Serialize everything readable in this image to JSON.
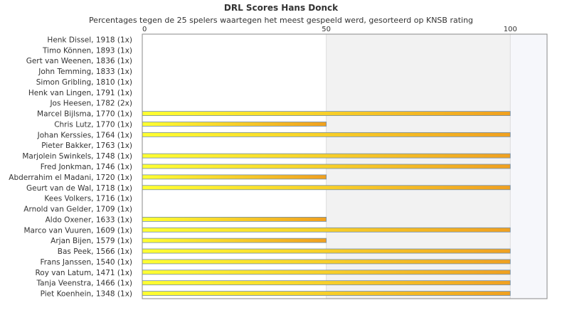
{
  "chart_data": {
    "type": "bar",
    "orientation": "horizontal",
    "title": "DRL Scores Hans Donck",
    "subtitle": "Percentages tegen de 25 spelers waartegen het meest gespeeld werd, gesorteerd op KNSB rating",
    "xlim": [
      0,
      110
    ],
    "xticks": [
      0,
      50,
      100
    ],
    "grid": true,
    "legend": "none",
    "colors": {
      "bar_start": "#ffff33",
      "bar_end": "#f0a020",
      "bar_border": "#6f8fb0",
      "band": "#f2f2f2",
      "band_last": "#f6f7fb",
      "gridline": "#dddddd",
      "axis": "#888888",
      "text": "#333333"
    },
    "categories": [
      "Henk Dissel, 1918 (1x)",
      "Timo Können, 1893 (1x)",
      "Gert van Weenen, 1836 (1x)",
      "John Temming, 1833 (1x)",
      "Simon Gribling, 1810 (1x)",
      "Henk van Lingen, 1791 (1x)",
      "Jos Heesen, 1782 (2x)",
      "Marcel Bijlsma, 1770 (1x)",
      "Chris Lutz, 1770 (1x)",
      "Johan Kerssies, 1764 (1x)",
      "Pieter Bakker, 1763 (1x)",
      "Marjolein Swinkels, 1748 (1x)",
      "Fred Jonkman, 1746 (1x)",
      "Abderrahim el Madani, 1720 (1x)",
      "Geurt van de Wal, 1718 (1x)",
      "Kees Volkers, 1716 (1x)",
      "Arnold van Gelder, 1709 (1x)",
      "Aldo Oxener, 1633 (1x)",
      "Marco van Vuuren, 1609 (1x)",
      "Arjan Bijen, 1579 (1x)",
      "Bas Peek, 1566 (1x)",
      "Frans Janssen, 1540 (1x)",
      "Roy van Latum, 1471 (1x)",
      "Tanja Veenstra, 1466 (1x)",
      "Piet Koenhein, 1348 (1x)"
    ],
    "values": [
      0,
      0,
      0,
      0,
      0,
      0,
      0,
      100,
      50,
      100,
      0,
      100,
      100,
      50,
      100,
      0,
      0,
      50,
      100,
      50,
      100,
      100,
      100,
      100,
      100
    ]
  }
}
